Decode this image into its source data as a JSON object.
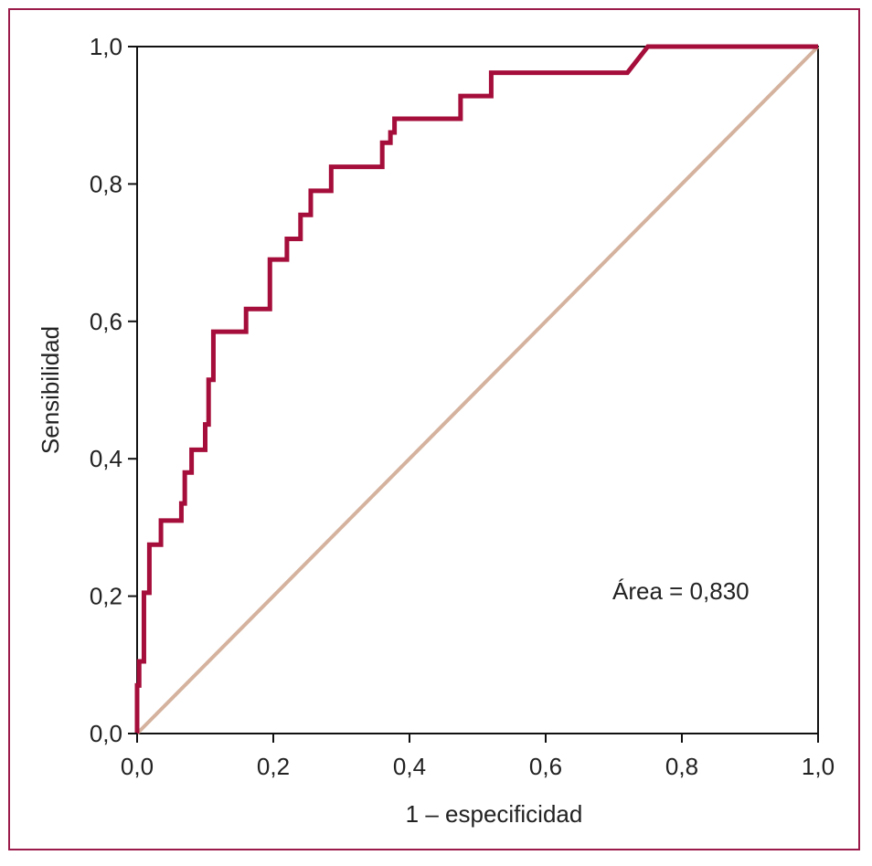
{
  "chart_data": {
    "type": "line",
    "title": "",
    "xlabel": "1 – especificidad",
    "ylabel": "Sensibilidad",
    "xlim": [
      0,
      1
    ],
    "ylim": [
      0,
      1
    ],
    "xticks": [
      0,
      0.2,
      0.4,
      0.6,
      0.8,
      1.0
    ],
    "yticks": [
      0,
      0.2,
      0.4,
      0.6,
      0.8,
      1.0
    ],
    "xtick_labels": [
      "0,0",
      "0,2",
      "0,4",
      "0,6",
      "0,8",
      "1,0"
    ],
    "ytick_labels": [
      "0,0",
      "0,2",
      "0,4",
      "0,6",
      "0,8",
      "1,0"
    ],
    "grid": false,
    "annotation": "Área = 0,830",
    "colors": {
      "roc": "#a50d3a",
      "reference": "#d4b29e",
      "axis": "#111111",
      "frame": "#9b1b4a"
    },
    "series": [
      {
        "x": [
          0,
          0,
          0.003,
          0.003,
          0.01,
          0.01,
          0.018,
          0.018,
          0.035,
          0.035,
          0.065,
          0.065,
          0.07,
          0.07,
          0.08,
          0.08,
          0.1,
          0.1,
          0.105,
          0.105,
          0.112,
          0.112,
          0.16,
          0.16,
          0.195,
          0.195,
          0.22,
          0.22,
          0.24,
          0.24,
          0.255,
          0.255,
          0.285,
          0.285,
          0.36,
          0.36,
          0.372,
          0.372,
          0.378,
          0.378,
          0.475,
          0.475,
          0.52,
          0.52,
          0.72,
          0.75,
          1.0
        ],
        "y": [
          0,
          0.07,
          0.07,
          0.105,
          0.105,
          0.205,
          0.205,
          0.275,
          0.275,
          0.31,
          0.31,
          0.335,
          0.335,
          0.38,
          0.38,
          0.413,
          0.413,
          0.45,
          0.45,
          0.515,
          0.515,
          0.585,
          0.585,
          0.618,
          0.618,
          0.69,
          0.69,
          0.72,
          0.72,
          0.755,
          0.755,
          0.79,
          0.79,
          0.825,
          0.825,
          0.86,
          0.86,
          0.875,
          0.875,
          0.895,
          0.895,
          0.928,
          0.928,
          0.962,
          0.962,
          1.0,
          1.0
        ]
      },
      {
        "x": [
          0,
          1
        ],
        "y": [
          0,
          1
        ]
      }
    ]
  }
}
